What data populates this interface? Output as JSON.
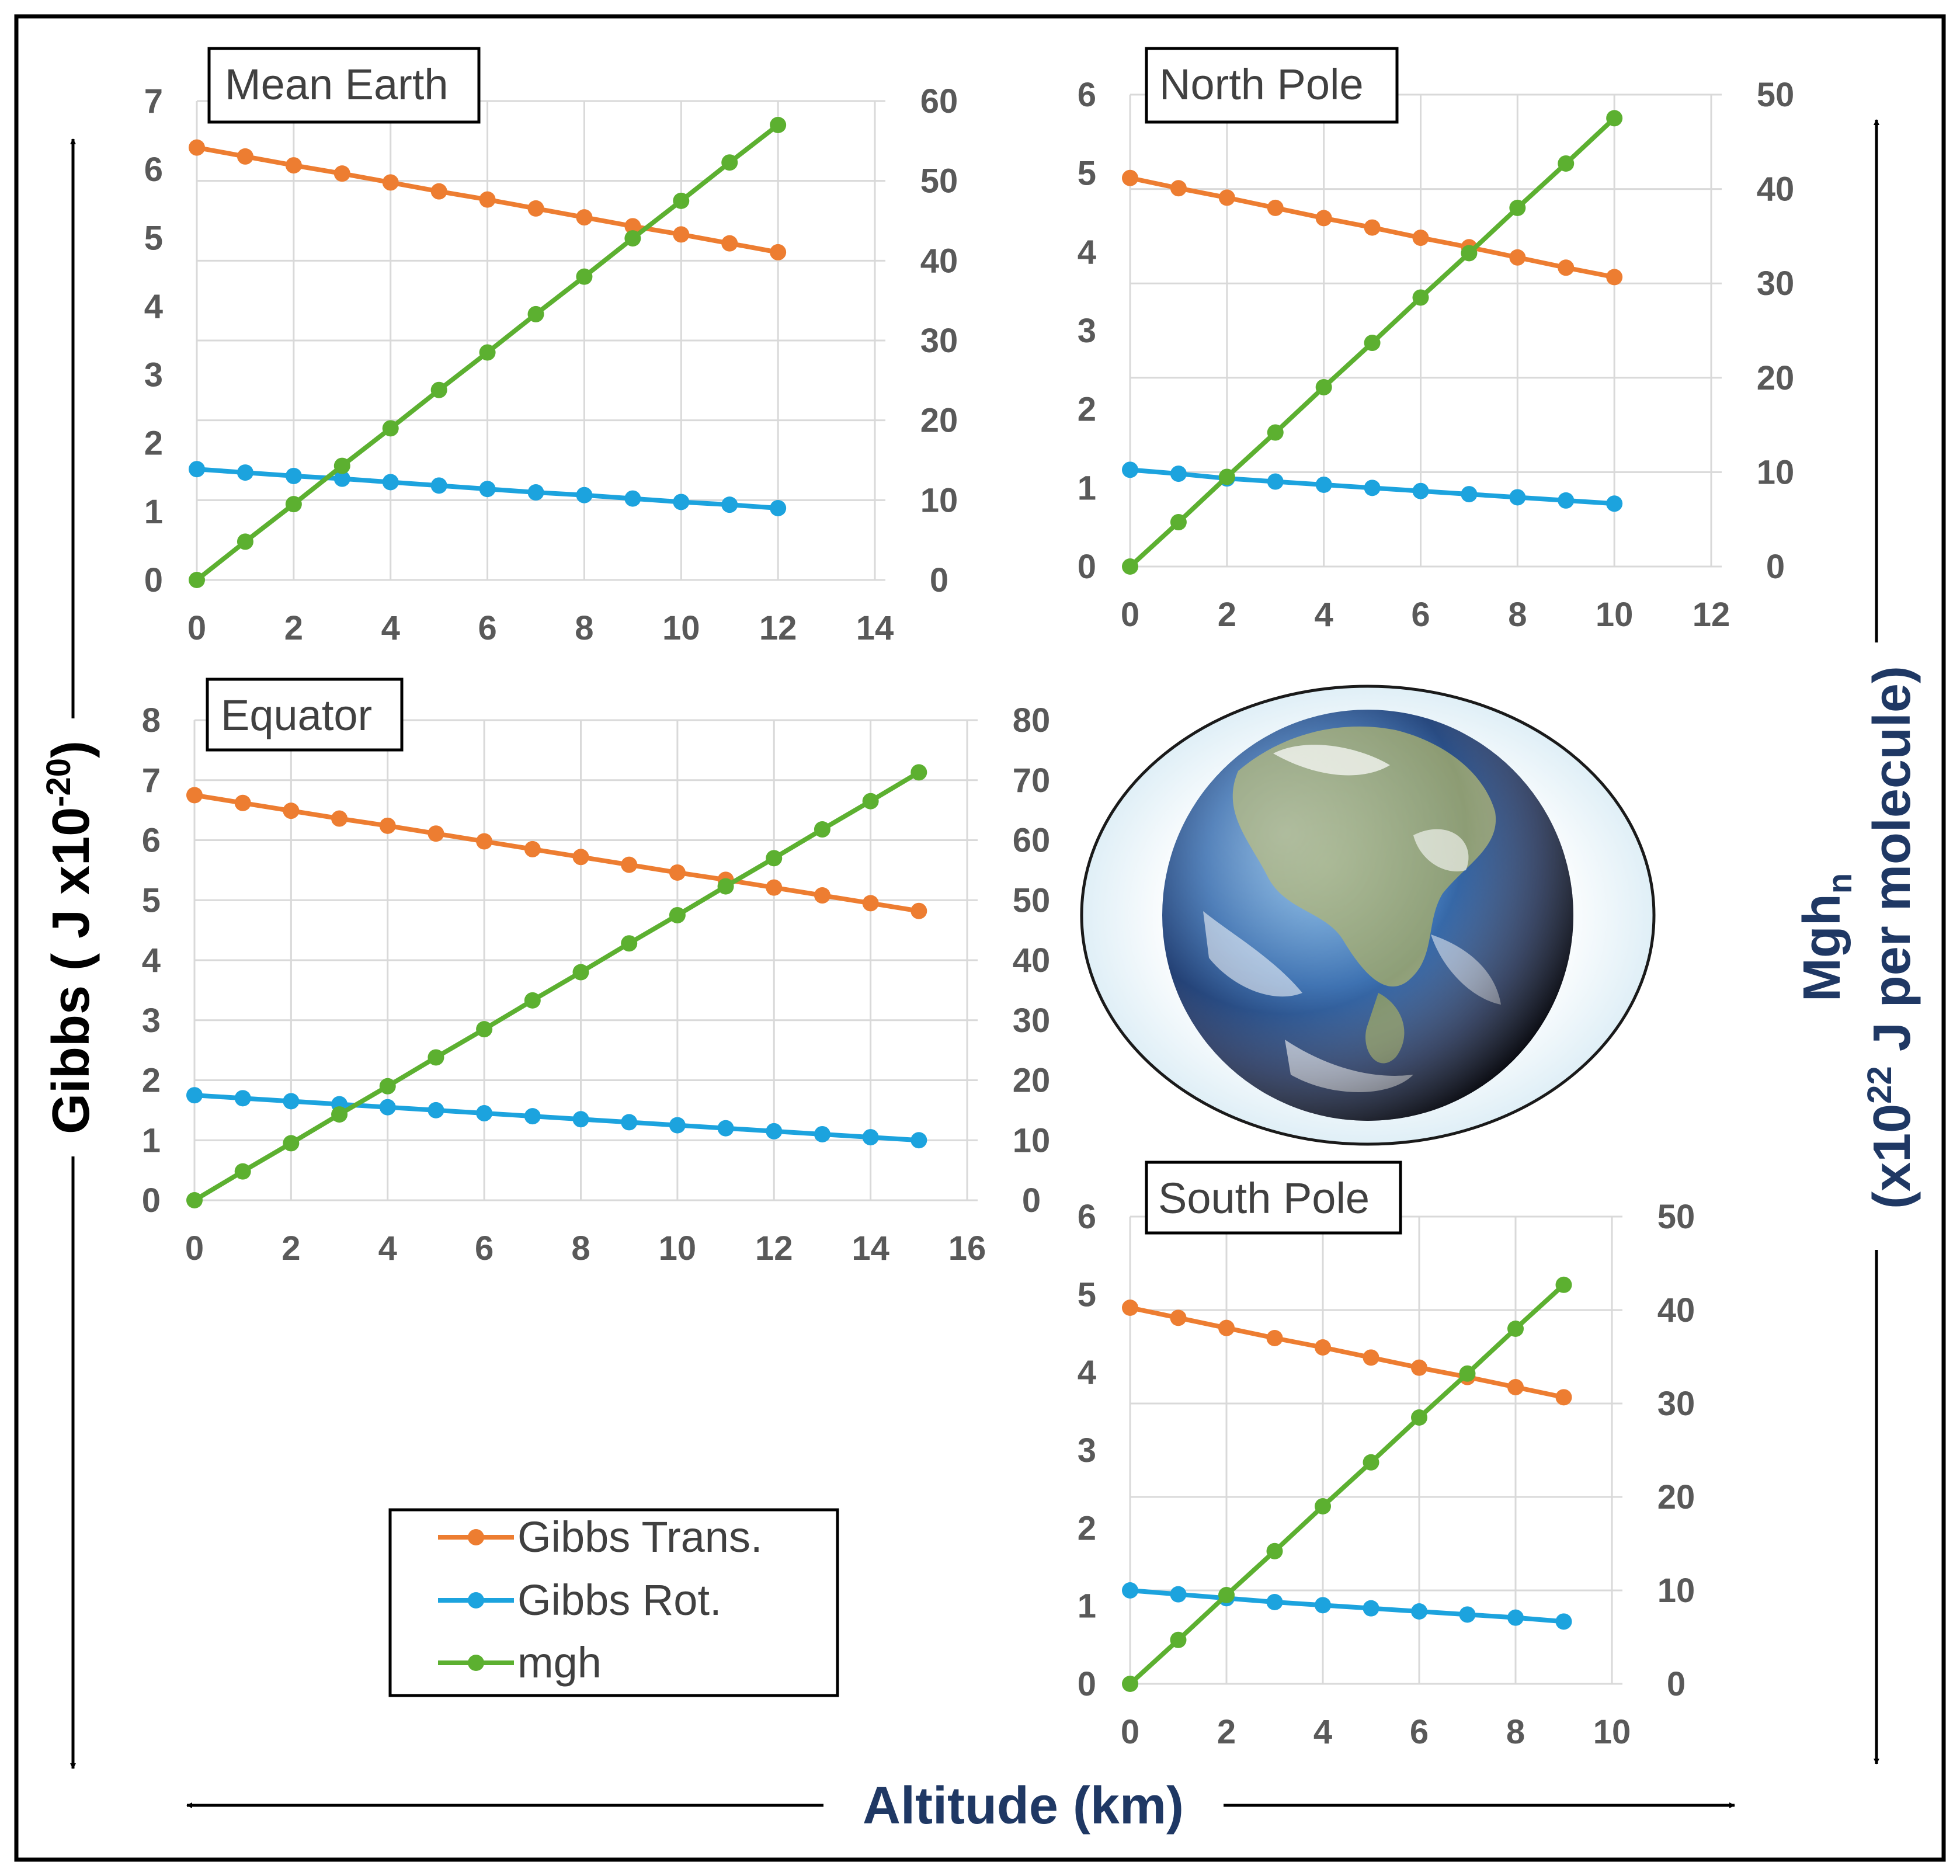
{
  "figure": {
    "left_axis_label": "Gibbs ( J x10",
    "left_axis_label_exp": "-20",
    "left_axis_label_close": ")",
    "right_axis_label_line1": "Mgh",
    "right_axis_label_line1_sub": "n",
    "right_axis_label_line2": "(x10",
    "right_axis_label_line2_exp": "22",
    "right_axis_label_line2_rest": " J per molecule)",
    "x_axis_label": "Altitude (km)",
    "colors": {
      "gibbs_trans": "#ED7D31",
      "gibbs_rot": "#1CA3DE",
      "mgh": "#5CB030",
      "grid": "#D9D9D9",
      "frame": "#000000",
      "x_label": "#1F3864"
    },
    "globe_icon": "earth-globe-icon"
  },
  "legend": {
    "items": [
      {
        "label": "Gibbs Trans.",
        "color": "#ED7D31"
      },
      {
        "label": "Gibbs Rot.",
        "color": "#1CA3DE"
      },
      {
        "label": "mgh",
        "color": "#5CB030"
      }
    ]
  },
  "chart_data": [
    {
      "type": "line",
      "title": "Mean Earth",
      "x": [
        0,
        1,
        2,
        3,
        4,
        5,
        6,
        7,
        8,
        9,
        10,
        11,
        12
      ],
      "xlim": [
        0,
        14
      ],
      "x_ticks": [
        0,
        2,
        4,
        6,
        8,
        10,
        12,
        14
      ],
      "ylim_left": [
        0,
        7
      ],
      "y_ticks_left": [
        0,
        1,
        2,
        3,
        4,
        5,
        6,
        7
      ],
      "ylim_right": [
        0,
        60
      ],
      "y_ticks_right": [
        0,
        10,
        20,
        30,
        40,
        50,
        60
      ],
      "series": [
        {
          "name": "Gibbs Trans.",
          "axis": "left",
          "values": [
            6.32,
            6.19,
            6.06,
            5.94,
            5.81,
            5.68,
            5.56,
            5.43,
            5.3,
            5.17,
            5.05,
            4.92,
            4.79
          ]
        },
        {
          "name": "Gibbs Rot.",
          "axis": "left",
          "values": [
            1.62,
            1.57,
            1.52,
            1.48,
            1.43,
            1.38,
            1.33,
            1.28,
            1.24,
            1.19,
            1.14,
            1.1,
            1.05
          ]
        },
        {
          "name": "mgh",
          "axis": "right",
          "values": [
            0,
            4.8,
            9.5,
            14.3,
            19.0,
            23.8,
            28.5,
            33.3,
            38.0,
            42.8,
            47.5,
            52.3,
            57.0
          ]
        }
      ]
    },
    {
      "type": "line",
      "title": "North Pole",
      "x": [
        0,
        1,
        2,
        3,
        4,
        5,
        6,
        7,
        8,
        9,
        10
      ],
      "xlim": [
        0,
        12
      ],
      "x_ticks": [
        0,
        2,
        4,
        6,
        8,
        10,
        12
      ],
      "ylim_left": [
        0,
        6
      ],
      "y_ticks_left": [
        0,
        1,
        2,
        3,
        4,
        5,
        6
      ],
      "ylim_right": [
        0,
        50
      ],
      "y_ticks_right": [
        0,
        10,
        20,
        30,
        40,
        50
      ],
      "series": [
        {
          "name": "Gibbs Trans.",
          "axis": "left",
          "values": [
            4.94,
            4.81,
            4.69,
            4.56,
            4.43,
            4.31,
            4.18,
            4.06,
            3.93,
            3.8,
            3.68
          ]
        },
        {
          "name": "Gibbs Rot.",
          "axis": "left",
          "values": [
            1.23,
            1.18,
            1.12,
            1.08,
            1.04,
            1.0,
            0.96,
            0.92,
            0.88,
            0.84,
            0.8
          ]
        },
        {
          "name": "mgh",
          "axis": "right",
          "values": [
            0,
            4.7,
            9.5,
            14.2,
            19.0,
            23.7,
            28.5,
            33.2,
            38.0,
            42.7,
            47.5
          ]
        }
      ]
    },
    {
      "type": "line",
      "title": "Equator",
      "x": [
        0,
        1,
        2,
        3,
        4,
        5,
        6,
        7,
        8,
        9,
        10,
        11,
        12,
        13,
        14,
        15
      ],
      "xlim": [
        0,
        16
      ],
      "x_ticks": [
        0,
        2,
        4,
        6,
        8,
        10,
        12,
        14,
        16
      ],
      "ylim_left": [
        0,
        8
      ],
      "y_ticks_left": [
        0,
        1,
        2,
        3,
        4,
        5,
        6,
        7,
        8
      ],
      "ylim_right": [
        0,
        80
      ],
      "y_ticks_right": [
        0,
        10,
        20,
        30,
        40,
        50,
        60,
        70,
        80
      ],
      "series": [
        {
          "name": "Gibbs Trans.",
          "axis": "left",
          "values": [
            6.75,
            6.62,
            6.49,
            6.36,
            6.24,
            6.11,
            5.98,
            5.85,
            5.72,
            5.59,
            5.46,
            5.34,
            5.21,
            5.08,
            4.95,
            4.82
          ]
        },
        {
          "name": "Gibbs Rot.",
          "axis": "left",
          "values": [
            1.75,
            1.7,
            1.65,
            1.6,
            1.55,
            1.5,
            1.45,
            1.4,
            1.35,
            1.3,
            1.25,
            1.2,
            1.15,
            1.1,
            1.05,
            1.0
          ]
        },
        {
          "name": "mgh",
          "axis": "right",
          "values": [
            0,
            4.8,
            9.5,
            14.3,
            19.0,
            23.8,
            28.5,
            33.3,
            38.0,
            42.8,
            47.5,
            52.3,
            57.0,
            61.8,
            66.5,
            71.3
          ]
        }
      ]
    },
    {
      "type": "line",
      "title": "South Pole",
      "x": [
        0,
        1,
        2,
        3,
        4,
        5,
        6,
        7,
        8,
        9
      ],
      "xlim": [
        0,
        10
      ],
      "x_ticks": [
        0,
        2,
        4,
        6,
        8,
        10
      ],
      "ylim_left": [
        0,
        6
      ],
      "y_ticks_left": [
        0,
        1,
        2,
        3,
        4,
        5,
        6
      ],
      "ylim_right": [
        0,
        50
      ],
      "y_ticks_right": [
        0,
        10,
        20,
        30,
        40,
        50
      ],
      "series": [
        {
          "name": "Gibbs Trans.",
          "axis": "left",
          "values": [
            4.83,
            4.7,
            4.57,
            4.44,
            4.32,
            4.19,
            4.06,
            3.94,
            3.81,
            3.68
          ]
        },
        {
          "name": "Gibbs Rot.",
          "axis": "left",
          "values": [
            1.2,
            1.15,
            1.1,
            1.05,
            1.01,
            0.97,
            0.93,
            0.89,
            0.85,
            0.8
          ]
        },
        {
          "name": "mgh",
          "axis": "right",
          "values": [
            0,
            4.7,
            9.5,
            14.2,
            19.0,
            23.7,
            28.5,
            33.2,
            38.0,
            42.7
          ]
        }
      ]
    }
  ]
}
